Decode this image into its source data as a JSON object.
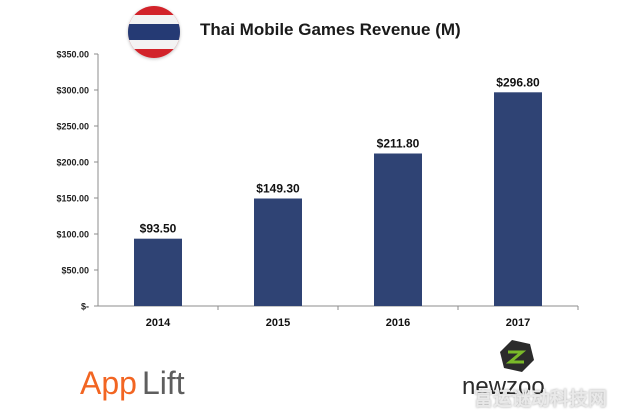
{
  "chart_data": {
    "type": "bar",
    "title": "Thai Mobile Games Revenue (M)",
    "categories": [
      "2014",
      "2015",
      "2016",
      "2017"
    ],
    "values": [
      93.5,
      149.3,
      211.8,
      296.8
    ],
    "value_labels": [
      "$93.50",
      "$149.30",
      "$211.80",
      "$296.80"
    ],
    "ylim": [
      0,
      350
    ],
    "yticks": [
      0,
      50,
      100,
      150,
      200,
      250,
      300,
      350
    ],
    "ytick_labels": [
      "$-",
      "$50.00",
      "$100.00",
      "$150.00",
      "$200.00",
      "$250.00",
      "$300.00",
      "$350.00"
    ],
    "xlabel": "",
    "ylabel": "",
    "grid": false,
    "bar_color": "#2f4374"
  },
  "logos": {
    "applift": {
      "left": "App",
      "right": "Lift"
    },
    "newzoo": "newzoo"
  },
  "watermark": "富运谜动科技网",
  "colors": {
    "flag_red": "#d2232a",
    "flag_white": "#f3f3f3",
    "flag_blue": "#253a74",
    "applift_orange": "#f26522",
    "applift_gray": "#5e5e5e",
    "newzoo_green": "#7ab929"
  },
  "icons": [
    "thailand-flag-icon",
    "applift-logo",
    "newzoo-logo-icon"
  ]
}
